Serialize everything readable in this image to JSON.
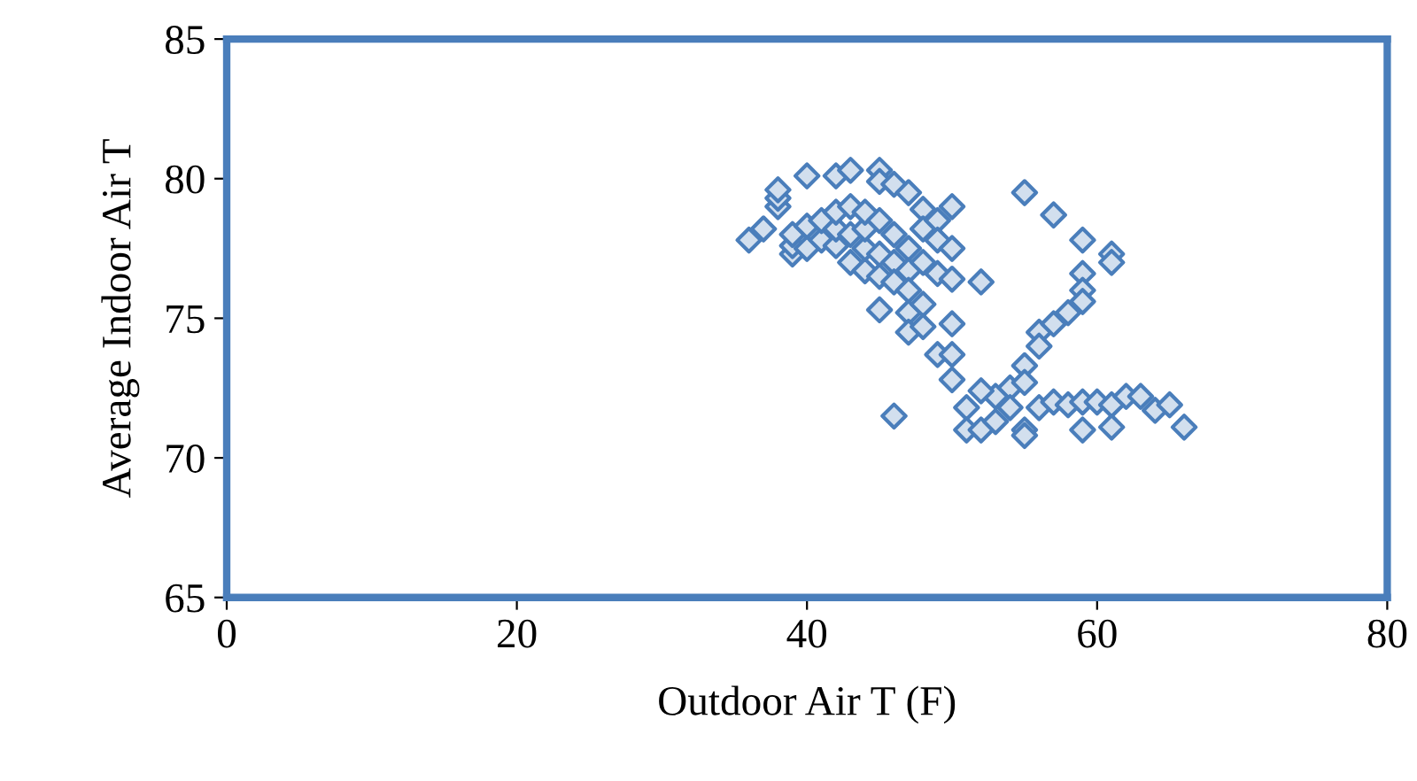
{
  "chart_data": {
    "type": "scatter",
    "xlabel": "Outdoor Air T (F)",
    "ylabel": "Average Indoor Air T",
    "xlim": [
      0,
      80
    ],
    "xticks": [
      0,
      20,
      40,
      60,
      80
    ],
    "ylim": [
      65,
      85
    ],
    "yticks": [
      65,
      70,
      75,
      80,
      85
    ],
    "grid": false,
    "marker": "diamond",
    "series": [
      {
        "color": "#4a7ebb",
        "x": [
          36,
          37,
          38,
          38,
          38,
          39,
          39,
          39,
          40,
          40,
          40,
          41,
          41,
          42,
          42,
          42,
          42,
          43,
          43,
          43,
          43,
          44,
          44,
          44,
          44,
          45,
          45,
          45,
          45,
          45,
          46,
          46,
          46,
          46,
          47,
          47,
          47,
          47,
          47,
          47,
          45,
          48,
          48,
          48,
          48,
          48,
          49,
          49,
          49,
          49,
          50,
          50,
          50,
          50,
          50,
          50,
          52,
          55,
          57,
          59,
          59,
          59,
          59,
          61,
          61,
          56,
          56,
          57,
          58,
          55,
          54,
          55,
          53,
          52,
          51,
          51,
          52,
          53,
          54,
          55,
          55,
          56,
          57,
          58,
          59,
          59,
          60,
          61,
          61,
          62,
          63,
          64,
          65,
          66,
          46
        ],
        "values": [
          77.8,
          78.2,
          79.0,
          79.3,
          79.6,
          77.3,
          77.6,
          78.0,
          80.1,
          77.5,
          78.3,
          77.8,
          78.5,
          77.6,
          78.2,
          78.8,
          80.1,
          80.3,
          77.0,
          78.0,
          79.0,
          76.7,
          77.5,
          78.2,
          78.8,
          80.3,
          79.9,
          77.3,
          76.5,
          78.5,
          79.8,
          77.0,
          78.0,
          76.3,
          79.5,
          77.5,
          76.7,
          76.0,
          75.2,
          74.5,
          75.3,
          78.9,
          78.2,
          77.0,
          75.5,
          74.7,
          78.5,
          77.8,
          76.6,
          73.7,
          79.0,
          77.5,
          76.4,
          74.8,
          73.7,
          72.8,
          76.3,
          79.5,
          78.7,
          77.8,
          76.6,
          76.0,
          75.6,
          77.3,
          77.0,
          74.5,
          74.0,
          74.8,
          75.2,
          73.3,
          72.5,
          72.7,
          72.2,
          72.4,
          71.8,
          71.0,
          71.0,
          71.3,
          71.8,
          71.0,
          70.8,
          71.8,
          72.0,
          71.9,
          72.0,
          71.0,
          72.0,
          71.9,
          71.1,
          72.2,
          72.2,
          71.7,
          71.9,
          71.1,
          71.5
        ]
      }
    ]
  }
}
